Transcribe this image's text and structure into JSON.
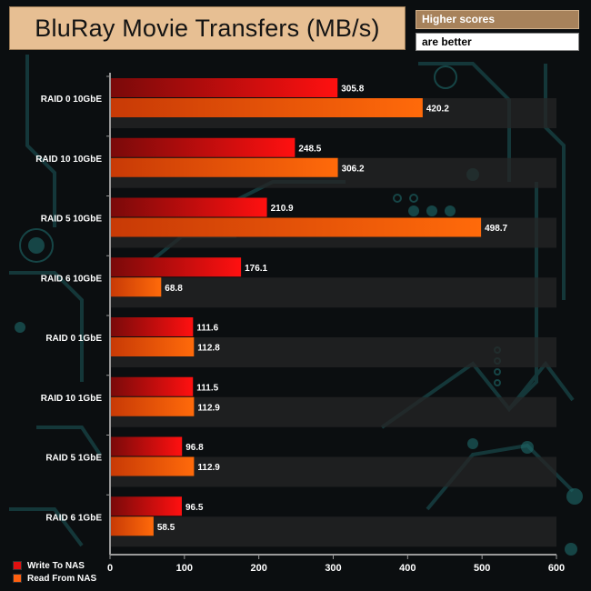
{
  "title": "BluRay Movie Transfers (MB/s)",
  "note_line1": "Higher scores",
  "note_line2": "are better",
  "colors": {
    "write_start": "#7a0a0a",
    "write_end": "#ff1010",
    "read_start": "#c83a06",
    "read_end": "#ff6a0a",
    "label": "#ffffff",
    "band": "#2a2a2a"
  },
  "legend": [
    {
      "label": "Write To NAS",
      "color": "#e01010"
    },
    {
      "label": "Read From NAS",
      "color": "#ff6010"
    }
  ],
  "chart_data": {
    "type": "bar",
    "orientation": "horizontal",
    "title": "BluRay Movie Transfers (MB/s)",
    "categories": [
      "RAID 0 10GbE",
      "RAID 10 10GbE",
      "RAID 5 10GbE",
      "RAID 6 10GbE",
      "RAID 0 1GbE",
      "RAID 10 1GbE",
      "RAID 5 1GbE",
      "RAID 6 1GbE"
    ],
    "series": [
      {
        "name": "Write To NAS",
        "values": [
          305.8,
          248.5,
          210.9,
          176.1,
          111.6,
          111.5,
          96.8,
          96.5
        ]
      },
      {
        "name": "Read From NAS",
        "values": [
          420.2,
          306.2,
          498.7,
          68.8,
          112.8,
          112.9,
          112.9,
          58.5
        ]
      }
    ],
    "xlim": [
      0,
      600
    ],
    "xticks": [
      0,
      100,
      200,
      300,
      400,
      500,
      600
    ],
    "legend_position": "bottom-left",
    "grid": false
  }
}
